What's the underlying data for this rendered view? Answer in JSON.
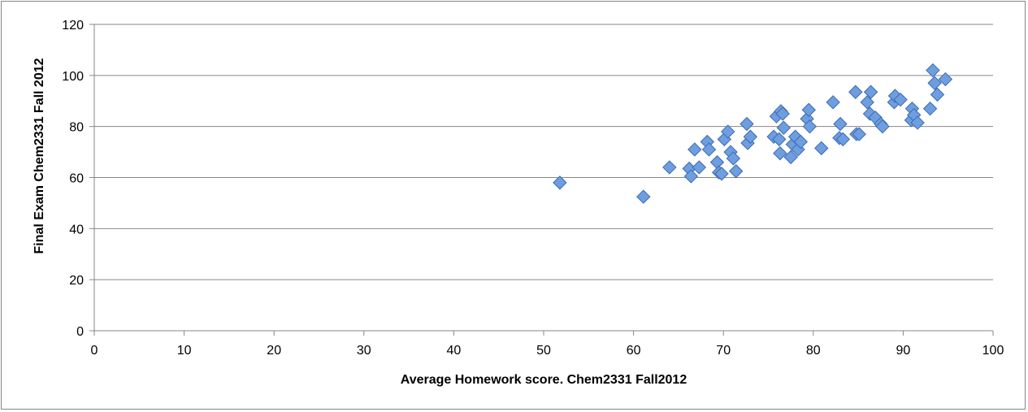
{
  "chart_data": {
    "type": "scatter",
    "title": "",
    "xlabel": "Average Homework score. Chem2331 Fall2012",
    "ylabel": "Final Exam Chem2331 Fall 2012",
    "xlim": [
      0,
      100
    ],
    "ylim": [
      0,
      120
    ],
    "x_ticks": [
      0,
      10,
      20,
      30,
      40,
      50,
      60,
      70,
      80,
      90,
      100
    ],
    "y_ticks": [
      0,
      20,
      40,
      60,
      80,
      100,
      120
    ],
    "x_tick_labels": [
      "0",
      "10",
      "20",
      "30",
      "40",
      "50",
      "60",
      "70",
      "80",
      "90",
      "100"
    ],
    "y_tick_labels": [
      "0",
      "20",
      "40",
      "60",
      "80",
      "100",
      "120"
    ],
    "grid": "horizontal major gridlines",
    "legend": "none",
    "marker": "diamond",
    "marker_color": "#6F9EE0",
    "marker_edge_color": "#3A6BB0",
    "points": [
      [
        51.8,
        58
      ],
      [
        61.1,
        52.5
      ],
      [
        64.0,
        64
      ],
      [
        66.2,
        63.5
      ],
      [
        66.4,
        60.5
      ],
      [
        66.8,
        71
      ],
      [
        67.3,
        64
      ],
      [
        68.2,
        74
      ],
      [
        68.4,
        71
      ],
      [
        69.3,
        66
      ],
      [
        69.5,
        62
      ],
      [
        69.8,
        61.5
      ],
      [
        70.1,
        75
      ],
      [
        70.5,
        78
      ],
      [
        70.8,
        70
      ],
      [
        71.1,
        67.5
      ],
      [
        71.4,
        62.5
      ],
      [
        72.6,
        81
      ],
      [
        72.7,
        73.5
      ],
      [
        73.0,
        76
      ],
      [
        75.6,
        76
      ],
      [
        75.9,
        84
      ],
      [
        76.2,
        75
      ],
      [
        76.3,
        69.5
      ],
      [
        76.4,
        86
      ],
      [
        76.6,
        85
      ],
      [
        76.7,
        79.5
      ],
      [
        77.5,
        68
      ],
      [
        77.7,
        73
      ],
      [
        78.0,
        76
      ],
      [
        78.3,
        71
      ],
      [
        78.6,
        74
      ],
      [
        79.3,
        83
      ],
      [
        79.5,
        86.5
      ],
      [
        79.6,
        80
      ],
      [
        80.9,
        71.5
      ],
      [
        82.2,
        89.5
      ],
      [
        82.9,
        75.5
      ],
      [
        83.0,
        81
      ],
      [
        83.3,
        75
      ],
      [
        84.7,
        93.5
      ],
      [
        84.8,
        77
      ],
      [
        85.1,
        77
      ],
      [
        86.0,
        89.5
      ],
      [
        86.3,
        85
      ],
      [
        86.4,
        93.5
      ],
      [
        86.9,
        83.5
      ],
      [
        87.5,
        81
      ],
      [
        87.7,
        80
      ],
      [
        89.0,
        89.5
      ],
      [
        89.1,
        92
      ],
      [
        89.7,
        90.5
      ],
      [
        90.9,
        82.5
      ],
      [
        91.0,
        87
      ],
      [
        91.2,
        84.5
      ],
      [
        91.6,
        81.5
      ],
      [
        93.0,
        87
      ],
      [
        93.3,
        102
      ],
      [
        93.5,
        97
      ],
      [
        93.8,
        92.5
      ],
      [
        94.7,
        98.5
      ]
    ]
  }
}
